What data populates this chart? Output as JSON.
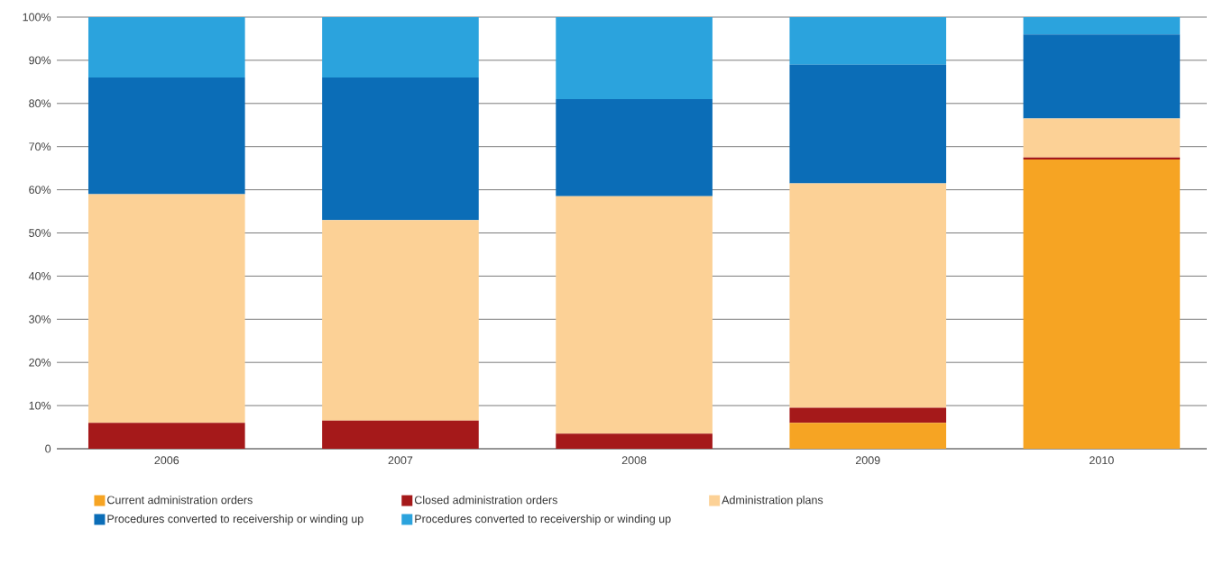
{
  "chart_data": {
    "type": "bar",
    "stacked": true,
    "categories": [
      "2006",
      "2007",
      "2008",
      "2009",
      "2010"
    ],
    "series": [
      {
        "name": "Current administration orders",
        "color": "#f6a423",
        "values": [
          0,
          0,
          0,
          6,
          67
        ]
      },
      {
        "name": "Closed administration orders",
        "color": "#a5191a",
        "values": [
          6,
          6.5,
          3.5,
          3.5,
          0.5
        ]
      },
      {
        "name": "Administration plans",
        "color": "#fcd196",
        "values": [
          53,
          46.5,
          55,
          52,
          9
        ]
      },
      {
        "name": "Procedures converted to receivership or winding up",
        "color": "#0b6db7",
        "values": [
          27,
          33,
          22.5,
          27.5,
          19.5
        ]
      },
      {
        "name": "Procedures converted to receivership or winding up",
        "color": "#2ba3dd",
        "values": [
          14,
          14,
          19,
          11,
          4
        ]
      }
    ],
    "ylim": [
      0,
      100
    ],
    "yticks": [
      0,
      {
        "value": 10,
        "label": "10%"
      },
      {
        "value": 20,
        "label": "20%"
      },
      {
        "value": 30,
        "label": "30%"
      },
      {
        "value": 40,
        "label": "40%"
      },
      {
        "value": 50,
        "label": "50%"
      },
      {
        "value": 60,
        "label": "60%"
      },
      {
        "value": 70,
        "label": "70%"
      },
      {
        "value": 80,
        "label": "80%"
      },
      {
        "value": 90,
        "label": "90%"
      },
      {
        "value": 100,
        "label": "100%"
      }
    ],
    "grid": "y",
    "legend": "bottom"
  }
}
